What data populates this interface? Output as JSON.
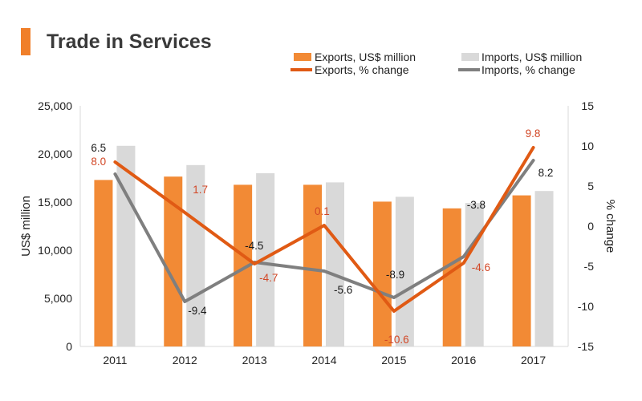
{
  "title": "Trade in Services",
  "colors": {
    "exports_bar": "#f28a35",
    "imports_bar": "#d9d9d9",
    "exports_line": "#e05a14",
    "imports_line": "#7f7f7f",
    "title_accent": "#f07f2a",
    "export_label": "#d24726",
    "import_label": "#1a1a1a"
  },
  "chart_data": {
    "type": "bar",
    "title": "Trade in Services",
    "categories": [
      "2011",
      "2012",
      "2013",
      "2014",
      "2015",
      "2016",
      "2017"
    ],
    "series": [
      {
        "name": "Exports, US$ million",
        "type": "bar",
        "axis": "left",
        "values": [
          17300,
          17650,
          16800,
          16800,
          15050,
          14350,
          15700
        ]
      },
      {
        "name": "Imports, US$ million",
        "type": "bar",
        "axis": "left",
        "values": [
          20850,
          18850,
          18000,
          17050,
          15550,
          14900,
          16150
        ]
      },
      {
        "name": "Exports, % change",
        "type": "line",
        "axis": "right",
        "values": [
          8.0,
          1.7,
          -4.7,
          0.1,
          -10.6,
          -4.6,
          9.8
        ],
        "labels": [
          "8.0",
          "1.7",
          "-4.7",
          "0.1",
          "-10.6",
          "-4.6",
          "9.8"
        ]
      },
      {
        "name": "Imports, % change",
        "type": "line",
        "axis": "right",
        "values": [
          6.5,
          -9.4,
          -4.5,
          -5.6,
          -8.9,
          -3.8,
          8.2
        ],
        "labels": [
          "6.5",
          "-9.4",
          "-4.5",
          "-5.6",
          "-8.9",
          "-3.8",
          "8.2"
        ]
      }
    ],
    "ylabel": "US$ million",
    "y2label": "% change",
    "ylim": [
      0,
      25000
    ],
    "y2lim": [
      -15,
      15
    ],
    "yticks": [
      "0",
      "5,000",
      "10,000",
      "15,000",
      "20,000",
      "25,000"
    ],
    "y2ticks": [
      "-15",
      "-10",
      "-5",
      "0",
      "5",
      "10",
      "15"
    ],
    "grid": false,
    "legend_position": "top-right"
  }
}
